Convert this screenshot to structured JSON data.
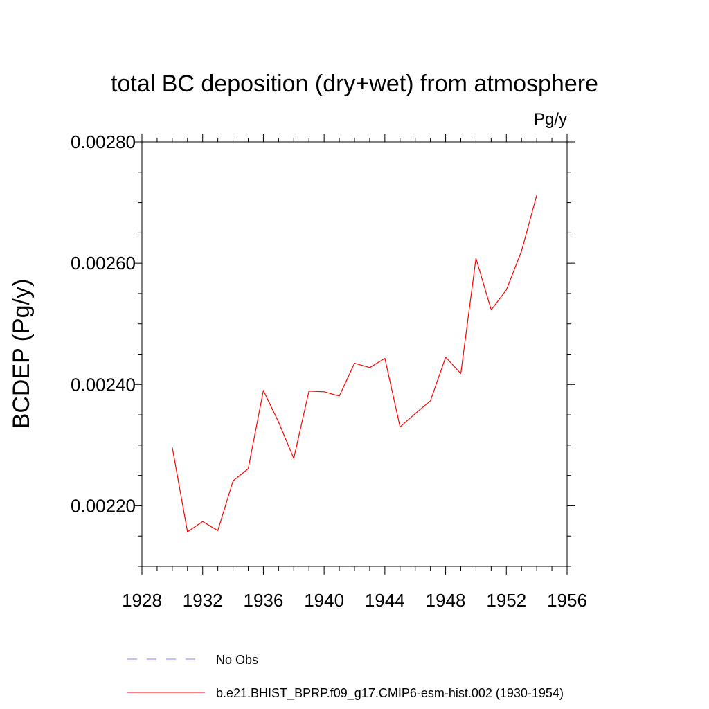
{
  "chart_data": {
    "type": "line",
    "title": "total BC deposition (dry+wet) from atmosphere",
    "units_label": "Pg/y",
    "xlabel": "",
    "ylabel": "BCDEP  (Pg/y)",
    "xlim": [
      1928,
      1956
    ],
    "ylim": [
      0.0021,
      0.0028
    ],
    "x_ticks": [
      1928,
      1932,
      1936,
      1940,
      1944,
      1948,
      1952,
      1956
    ],
    "x_tick_labels": [
      "1928",
      "1932",
      "1936",
      "1940",
      "1944",
      "1948",
      "1952",
      "1956"
    ],
    "y_ticks": [
      0.0022,
      0.0024,
      0.0026,
      0.0028
    ],
    "y_tick_labels": [
      "0.00220",
      "0.00240",
      "0.00260",
      "0.00280"
    ],
    "grid": false,
    "series": [
      {
        "name": "b.e21.BHIST_BPRP.f09_g17.CMIP6-esm-hist.002 (1930-1954)",
        "color": "#ff0000",
        "style": "solid",
        "x": [
          1930,
          1931,
          1932,
          1933,
          1934,
          1935,
          1936,
          1937,
          1938,
          1939,
          1940,
          1941,
          1942,
          1943,
          1944,
          1945,
          1946,
          1947,
          1948,
          1949,
          1950,
          1951,
          1952,
          1953,
          1954
        ],
        "values": [
          0.002296,
          0.002157,
          0.002174,
          0.002159,
          0.002241,
          0.002261,
          0.00239,
          0.002338,
          0.002278,
          0.002389,
          0.002388,
          0.002381,
          0.002435,
          0.002428,
          0.002443,
          0.00233,
          0.002352,
          0.002373,
          0.002445,
          0.002418,
          0.002608,
          0.002523,
          0.002556,
          0.00262,
          0.002712
        ]
      }
    ],
    "legend": {
      "placement": "bottom-left",
      "entries": [
        {
          "label": "No Obs",
          "color": "#8080ff",
          "style": "dashed"
        },
        {
          "label": "b.e21.BHIST_BPRP.f09_g17.CMIP6-esm-hist.002 (1930-1954)",
          "color": "#ff0000",
          "style": "solid"
        }
      ]
    }
  }
}
